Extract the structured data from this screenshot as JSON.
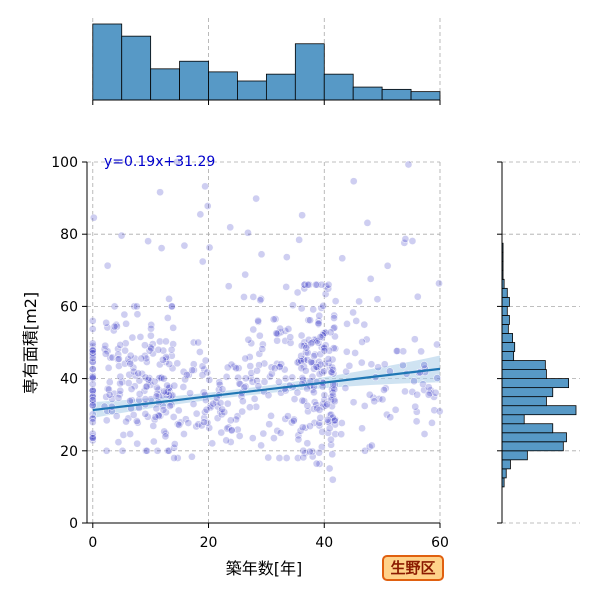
{
  "badge": {
    "region": "生野区",
    "bg_color": "#ffd28a",
    "border_color": "#e06010",
    "text_color": "#8b1a00"
  },
  "chart_data": {
    "type": "scatter",
    "xlabel": "築年数[年]",
    "ylabel": "専有面積[m2]",
    "xlim": [
      -1,
      60
    ],
    "ylim": [
      0,
      100
    ],
    "xticks": [
      0,
      20,
      40,
      60
    ],
    "yticks": [
      0,
      20,
      40,
      60,
      80,
      100
    ],
    "grid": true,
    "point_color": "#2020c0",
    "regression": {
      "equation": "y=0.19x+31.29",
      "slope": 0.19,
      "intercept": 31.29,
      "color": "#1f77b4",
      "ci_color": "#a8cce8"
    },
    "x_hist": {
      "bin_edges": [
        0,
        5,
        10,
        15,
        20,
        25,
        30,
        35,
        40,
        45,
        50,
        55,
        60
      ],
      "counts": [
        100,
        84,
        41,
        51,
        37,
        25,
        34,
        74,
        34,
        17,
        14,
        11
      ],
      "color": "#5799c6"
    },
    "y_hist": {
      "bin_edges": [
        10,
        12.5,
        15,
        17.5,
        20,
        22.5,
        25,
        27.5,
        30,
        32.5,
        35,
        37.5,
        40,
        42.5,
        45,
        47.5,
        50,
        52.5,
        55,
        57.5,
        60,
        62.5,
        65,
        67.5,
        70,
        72.5,
        75,
        77.5,
        80,
        82.5,
        85,
        87.5,
        90,
        92.5,
        95,
        97.5,
        100
      ],
      "counts": [
        2,
        4,
        8,
        24,
        58,
        61,
        48,
        21,
        70,
        42,
        48,
        63,
        42,
        41,
        11,
        12,
        10,
        6,
        7,
        5,
        7,
        5,
        2,
        1,
        1,
        1,
        1,
        0,
        0,
        0,
        0,
        0,
        0,
        0,
        0,
        0
      ],
      "color": "#5799c6"
    }
  }
}
